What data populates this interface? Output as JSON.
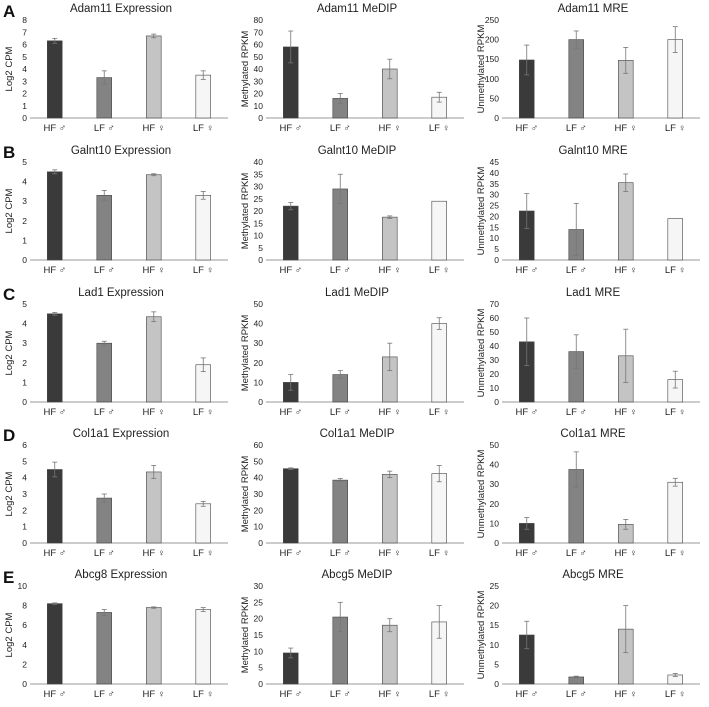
{
  "panels": [
    {
      "letter": "A"
    },
    {
      "letter": "B"
    },
    {
      "letter": "C"
    },
    {
      "letter": "D"
    },
    {
      "letter": "E"
    }
  ],
  "colors": {
    "hf_male": "#3a3a3a",
    "lf_male": "#838383",
    "hf_female": "#c4c4c4",
    "lf_female": "#f6f6f6",
    "bar_stroke": "#444444",
    "axis": "#9a9a9a",
    "error_bar": "#777777"
  },
  "chart_data": [
    {
      "id": "A-expr",
      "type": "bar",
      "title": "Adam11 Expression",
      "ylabel": "Log2 CPM",
      "xlabel": "",
      "categories": [
        "HF ♂",
        "LF ♂",
        "HF ♀",
        "LF ♀"
      ],
      "ylim": [
        0,
        8
      ],
      "yticks": [
        0,
        1,
        2,
        3,
        4,
        5,
        6,
        7,
        8
      ],
      "values": [
        6.3,
        3.3,
        6.7,
        3.5
      ],
      "errors": [
        0.2,
        0.55,
        0.15,
        0.35
      ]
    },
    {
      "id": "A-medip",
      "type": "bar",
      "title": "Adam11 MeDIP",
      "ylabel": "Methylated RPKM",
      "xlabel": "",
      "categories": [
        "HF ♂",
        "LF ♂",
        "HF ♀",
        "LF ♀"
      ],
      "ylim": [
        0,
        80
      ],
      "yticks": [
        0,
        10,
        20,
        30,
        40,
        50,
        60,
        70,
        80
      ],
      "values": [
        58,
        16,
        40,
        17
      ],
      "errors": [
        13,
        4,
        8,
        4
      ]
    },
    {
      "id": "A-mre",
      "type": "bar",
      "title": "Adam11 MRE",
      "ylabel": "Unmethylated RPKM",
      "xlabel": "",
      "categories": [
        "HF ♂",
        "LF ♂",
        "HF ♀",
        "LF ♀"
      ],
      "ylim": [
        0,
        250
      ],
      "yticks": [
        0,
        50,
        100,
        150,
        200,
        250
      ],
      "values": [
        148,
        200,
        147,
        200
      ],
      "errors": [
        38,
        22,
        33,
        33
      ]
    },
    {
      "id": "B-expr",
      "type": "bar",
      "title": "Galnt10 Expression",
      "ylabel": "Log2 CPM",
      "xlabel": "",
      "categories": [
        "HF ♂",
        "LF ♂",
        "HF ♀",
        "LF ♀"
      ],
      "ylim": [
        0,
        5
      ],
      "yticks": [
        0,
        1,
        2,
        3,
        4,
        5
      ],
      "values": [
        4.5,
        3.3,
        4.35,
        3.3
      ],
      "errors": [
        0.1,
        0.25,
        0.05,
        0.2
      ]
    },
    {
      "id": "B-medip",
      "type": "bar",
      "title": "Galnt10 MeDIP",
      "ylabel": "Methylated RPKM",
      "xlabel": "",
      "categories": [
        "HF ♂",
        "LF ♂",
        "HF ♀",
        "LF ♀"
      ],
      "ylim": [
        0,
        40
      ],
      "yticks": [
        0,
        5,
        10,
        15,
        20,
        25,
        30,
        35,
        40
      ],
      "values": [
        22,
        29,
        17.5,
        24
      ],
      "errors": [
        1.5,
        6,
        0.5,
        0
      ]
    },
    {
      "id": "B-mre",
      "type": "bar",
      "title": "Galnt10 MRE",
      "ylabel": "Unmethylated RPKM",
      "xlabel": "",
      "categories": [
        "HF ♂",
        "LF ♂",
        "HF ♀",
        "LF ♀"
      ],
      "ylim": [
        0,
        45
      ],
      "yticks": [
        0,
        5,
        10,
        15,
        20,
        25,
        30,
        35,
        40,
        45
      ],
      "values": [
        22.5,
        14,
        35.5,
        19
      ],
      "errors": [
        8,
        12,
        4,
        0
      ]
    },
    {
      "id": "C-expr",
      "type": "bar",
      "title": "Lad1 Expression",
      "ylabel": "Log2 CPM",
      "xlabel": "",
      "categories": [
        "HF ♂",
        "LF ♂",
        "HF ♀",
        "LF ♀"
      ],
      "ylim": [
        0,
        5
      ],
      "yticks": [
        0,
        0.5,
        1,
        1.5,
        2,
        2.5,
        3,
        3.5,
        4,
        4.5,
        5
      ],
      "ytick_labels": [
        "0",
        "",
        "1",
        "",
        "2",
        "",
        "3",
        "",
        "4",
        "",
        "5"
      ],
      "values": [
        4.5,
        3.0,
        4.35,
        1.9
      ],
      "errors": [
        0.07,
        0.1,
        0.25,
        0.35
      ]
    },
    {
      "id": "C-medip",
      "type": "bar",
      "title": "Lad1 MeDIP",
      "ylabel": "Methylated RPKM",
      "xlabel": "",
      "categories": [
        "HF ♂",
        "LF ♂",
        "HF ♀",
        "LF ♀"
      ],
      "ylim": [
        0,
        50
      ],
      "yticks": [
        0,
        10,
        20,
        30,
        40,
        50
      ],
      "values": [
        10,
        14,
        23,
        40
      ],
      "errors": [
        4,
        2,
        7,
        3
      ]
    },
    {
      "id": "C-mre",
      "type": "bar",
      "title": "Lad1 MRE",
      "ylabel": "Unmethylated RPKM",
      "xlabel": "",
      "categories": [
        "HF ♂",
        "LF ♂",
        "HF ♀",
        "LF ♀"
      ],
      "ylim": [
        0,
        70
      ],
      "yticks": [
        0,
        10,
        20,
        30,
        40,
        50,
        60,
        70
      ],
      "values": [
        43,
        36,
        33,
        16
      ],
      "errors": [
        17,
        12,
        19,
        6
      ]
    },
    {
      "id": "D-expr",
      "type": "bar",
      "title": "Col1a1 Expression",
      "ylabel": "Log2 CPM",
      "xlabel": "",
      "categories": [
        "HF ♂",
        "LF ♂",
        "HF ♀",
        "LF ♀"
      ],
      "ylim": [
        0,
        6
      ],
      "yticks": [
        0,
        1,
        2,
        3,
        4,
        5,
        6
      ],
      "values": [
        4.5,
        2.75,
        4.35,
        2.4
      ],
      "errors": [
        0.45,
        0.25,
        0.4,
        0.15
      ]
    },
    {
      "id": "D-medip",
      "type": "bar",
      "title": "Col1a1 MeDIP",
      "ylabel": "Methylated RPKM",
      "xlabel": "",
      "categories": [
        "HF ♂",
        "LF ♂",
        "HF ♀",
        "LF ♀"
      ],
      "ylim": [
        0,
        60
      ],
      "yticks": [
        0,
        10,
        20,
        30,
        40,
        50,
        60
      ],
      "values": [
        45.5,
        38.5,
        42,
        42.5
      ],
      "errors": [
        0.5,
        1,
        2,
        5
      ]
    },
    {
      "id": "D-mre",
      "type": "bar",
      "title": "Col1a1 MRE",
      "ylabel": "Unmethylated RPKM",
      "xlabel": "",
      "categories": [
        "HF ♂",
        "LF ♂",
        "HF ♀",
        "LF ♀"
      ],
      "ylim": [
        0,
        50
      ],
      "yticks": [
        0,
        10,
        20,
        30,
        40,
        50
      ],
      "values": [
        10,
        37.5,
        9.5,
        31
      ],
      "errors": [
        3,
        9,
        2.5,
        2
      ]
    },
    {
      "id": "E-expr",
      "type": "bar",
      "title": "Abcg8 Expression",
      "ylabel": "Log2 CPM",
      "xlabel": "",
      "categories": [
        "HF ♂",
        "LF ♂",
        "HF ♀",
        "LF ♀"
      ],
      "ylim": [
        0,
        10
      ],
      "yticks": [
        0,
        2,
        4,
        6,
        8,
        10
      ],
      "values": [
        8.2,
        7.3,
        7.8,
        7.6
      ],
      "errors": [
        0.07,
        0.3,
        0.07,
        0.2
      ]
    },
    {
      "id": "E-medip",
      "type": "bar",
      "title": "Abcg5 MeDIP",
      "ylabel": "Methylated RPKM",
      "xlabel": "",
      "categories": [
        "HF ♂",
        "LF ♂",
        "HF ♀",
        "LF ♀"
      ],
      "ylim": [
        0,
        30
      ],
      "yticks": [
        0,
        5,
        10,
        15,
        20,
        25,
        30
      ],
      "values": [
        9.5,
        20.5,
        18,
        19
      ],
      "errors": [
        1.5,
        4.5,
        2,
        5
      ]
    },
    {
      "id": "E-mre",
      "type": "bar",
      "title": "Abcg5 MRE",
      "ylabel": "Unmethylated RPKM",
      "xlabel": "",
      "categories": [
        "HF ♂",
        "LF ♂",
        "HF ♀",
        "LF ♀"
      ],
      "ylim": [
        0,
        25
      ],
      "yticks": [
        0,
        5,
        10,
        15,
        20,
        25
      ],
      "values": [
        12.5,
        1.8,
        14,
        2.3
      ],
      "errors": [
        3.5,
        0.2,
        6,
        0.4
      ]
    }
  ]
}
